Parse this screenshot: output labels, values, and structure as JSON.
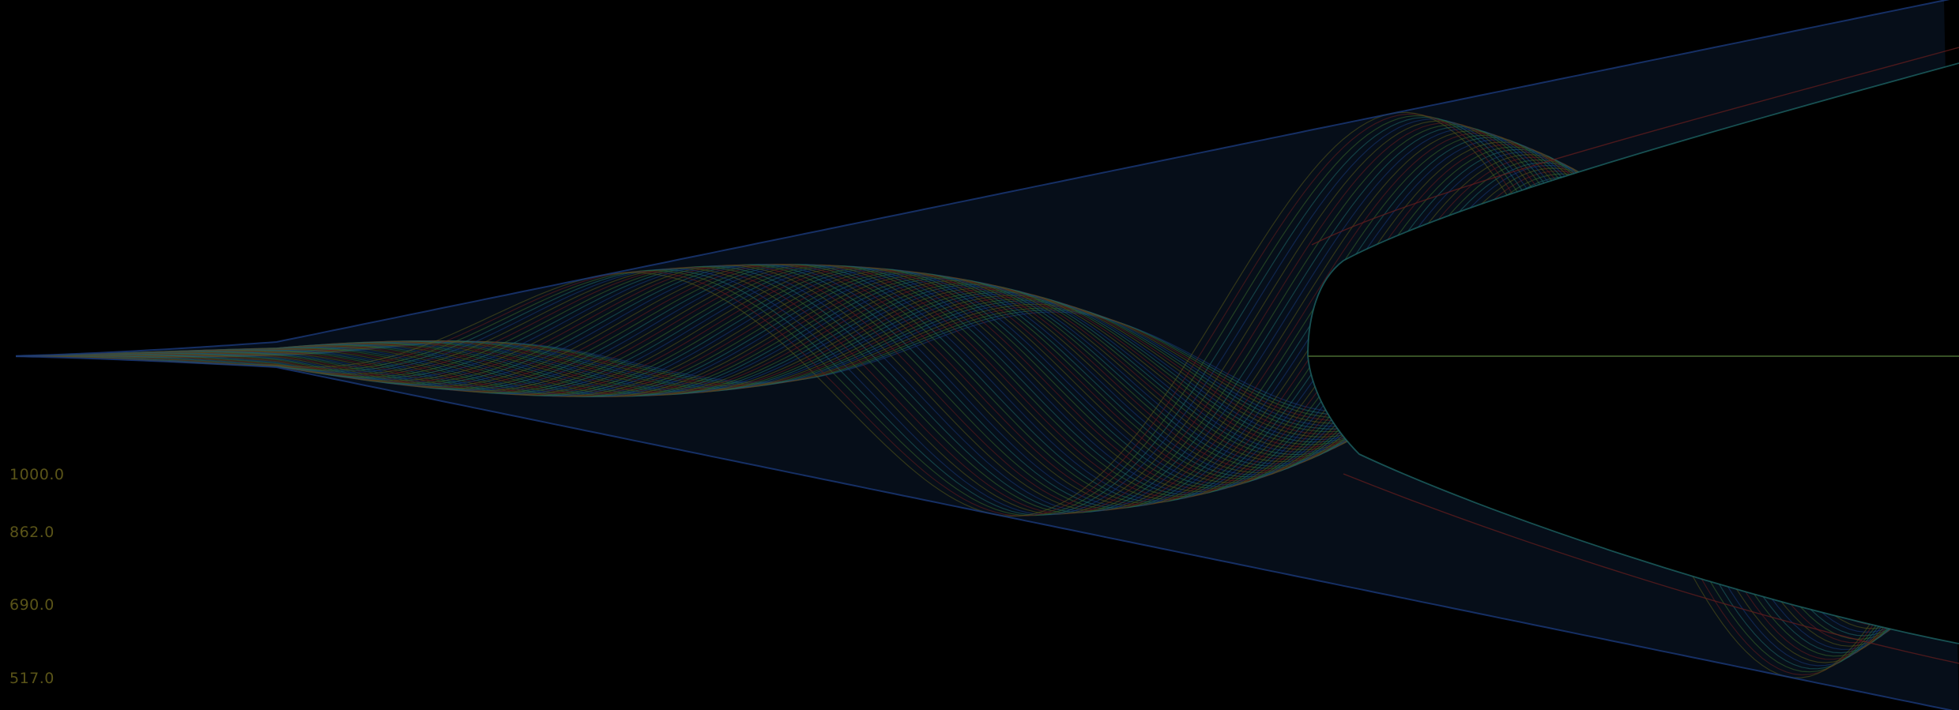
{
  "chart_data": {
    "type": "line",
    "title": "",
    "xlabel": "",
    "ylabel": "",
    "grid": false,
    "legend": "none",
    "scale_labels": [
      "1000.0",
      "862.0",
      "690.0",
      "517.0"
    ],
    "colors": {
      "background": "#000000",
      "labels": "#5a5418",
      "trace_blue": "#1a3a7a",
      "trace_teal": "#1f6a6a",
      "trace_green": "#3a6a2a",
      "trace_red": "#6a1e1e",
      "trace_olive": "#5a5a1a"
    }
  }
}
